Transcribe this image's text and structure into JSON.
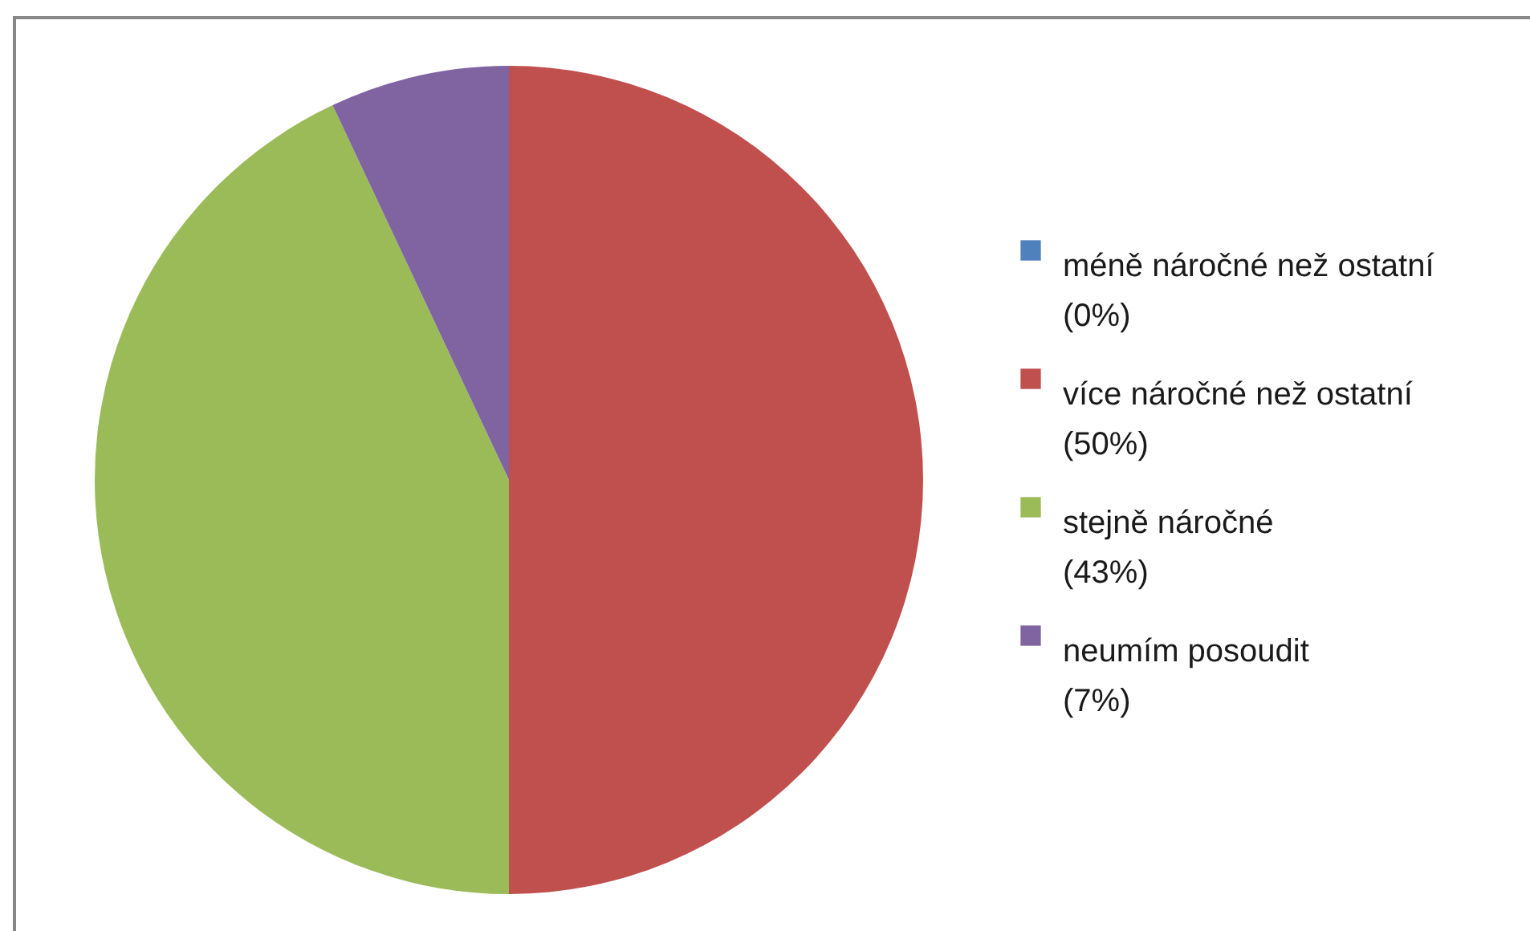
{
  "chart_data": {
    "type": "pie",
    "categories": [
      "méně náročné než ostatní (0%)",
      "více náročné než ostatní (50%)",
      "stejně náročné (43%)",
      "neumím posoudit (7%)"
    ],
    "values": [
      0,
      50,
      43,
      7
    ],
    "colors": [
      "#4f81bd",
      "#c0504d",
      "#9bbb59",
      "#8064a2"
    ],
    "legend": "right"
  }
}
